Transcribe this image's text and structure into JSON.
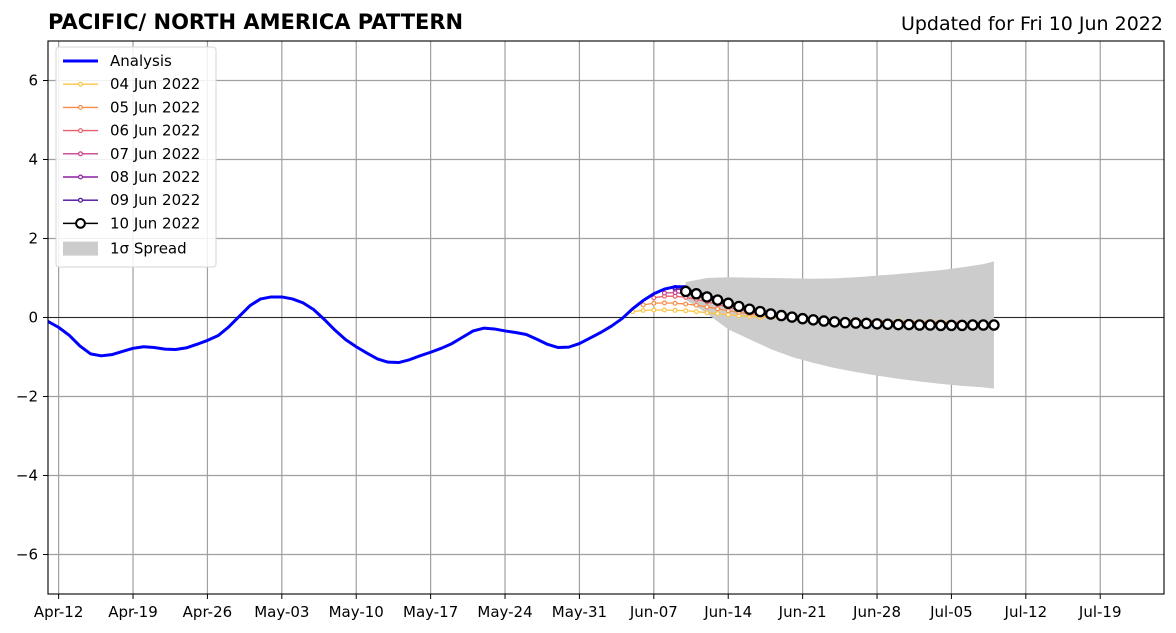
{
  "chart_data": {
    "type": "line",
    "title": "PACIFIC/ NORTH AMERICA PATTERN",
    "subtitle": "Updated for Fri 10 Jun 2022",
    "xlabel": "",
    "ylabel": "",
    "xlim": [
      "2022-04-11",
      "2022-07-25"
    ],
    "ylim": [
      -7,
      7
    ],
    "x_ticks": [
      "Apr-12",
      "Apr-19",
      "Apr-26",
      "May-03",
      "May-10",
      "May-17",
      "May-24",
      "May-31",
      "Jun-07",
      "Jun-14",
      "Jun-21",
      "Jun-28",
      "Jul-05",
      "Jul-12",
      "Jul-19"
    ],
    "x_tick_dates": [
      "2022-04-12",
      "2022-04-19",
      "2022-04-26",
      "2022-05-03",
      "2022-05-10",
      "2022-05-17",
      "2022-05-24",
      "2022-05-31",
      "2022-06-07",
      "2022-06-14",
      "2022-06-21",
      "2022-06-28",
      "2022-07-05",
      "2022-07-12",
      "2022-07-19"
    ],
    "y_ticks": [
      -6,
      -4,
      -2,
      0,
      2,
      4,
      6
    ],
    "y_tick_labels": [
      "−6",
      "−4",
      "−2",
      "0",
      "2",
      "4",
      "6"
    ],
    "grid": true,
    "legend_position": "top-left",
    "spread": {
      "name": "1σ Spread",
      "color": "#cccccc",
      "x": [
        "2022-06-10",
        "2022-06-12",
        "2022-06-14",
        "2022-06-16",
        "2022-06-18",
        "2022-06-20",
        "2022-06-22",
        "2022-06-24",
        "2022-06-26",
        "2022-06-28",
        "2022-06-30",
        "2022-07-02",
        "2022-07-04",
        "2022-07-06",
        "2022-07-08",
        "2022-07-09"
      ],
      "upper": [
        0.9,
        1.0,
        1.02,
        1.01,
        1.0,
        0.99,
        0.98,
        0.99,
        1.02,
        1.06,
        1.1,
        1.15,
        1.2,
        1.27,
        1.35,
        1.42
      ],
      "lower": [
        0.45,
        0.1,
        -0.3,
        -0.55,
        -0.8,
        -1.0,
        -1.15,
        -1.28,
        -1.38,
        -1.47,
        -1.55,
        -1.62,
        -1.68,
        -1.73,
        -1.77,
        -1.8
      ]
    },
    "series": [
      {
        "name": "Analysis",
        "color": "#0000ff",
        "x": [
          "2022-04-11",
          "2022-04-12",
          "2022-04-13",
          "2022-04-14",
          "2022-04-15",
          "2022-04-16",
          "2022-04-17",
          "2022-04-18",
          "2022-04-19",
          "2022-04-20",
          "2022-04-21",
          "2022-04-22",
          "2022-04-23",
          "2022-04-24",
          "2022-04-25",
          "2022-04-26",
          "2022-04-27",
          "2022-04-28",
          "2022-04-29",
          "2022-04-30",
          "2022-05-01",
          "2022-05-02",
          "2022-05-03",
          "2022-05-04",
          "2022-05-05",
          "2022-05-06",
          "2022-05-07",
          "2022-05-08",
          "2022-05-09",
          "2022-05-10",
          "2022-05-11",
          "2022-05-12",
          "2022-05-13",
          "2022-05-14",
          "2022-05-15",
          "2022-05-16",
          "2022-05-17",
          "2022-05-18",
          "2022-05-19",
          "2022-05-20",
          "2022-05-21",
          "2022-05-22",
          "2022-05-23",
          "2022-05-24",
          "2022-05-25",
          "2022-05-26",
          "2022-05-27",
          "2022-05-28",
          "2022-05-29",
          "2022-05-30",
          "2022-05-31",
          "2022-06-01",
          "2022-06-02",
          "2022-06-03",
          "2022-06-04",
          "2022-06-05",
          "2022-06-06",
          "2022-06-07",
          "2022-06-08",
          "2022-06-09",
          "2022-06-10"
        ],
        "values": [
          -0.1,
          -0.25,
          -0.45,
          -0.72,
          -0.92,
          -0.97,
          -0.94,
          -0.86,
          -0.78,
          -0.74,
          -0.76,
          -0.8,
          -0.81,
          -0.77,
          -0.68,
          -0.58,
          -0.46,
          -0.24,
          0.03,
          0.3,
          0.47,
          0.52,
          0.52,
          0.47,
          0.37,
          0.2,
          -0.05,
          -0.32,
          -0.56,
          -0.74,
          -0.9,
          -1.05,
          -1.13,
          -1.14,
          -1.07,
          -0.97,
          -0.88,
          -0.78,
          -0.66,
          -0.5,
          -0.34,
          -0.27,
          -0.29,
          -0.34,
          -0.38,
          -0.43,
          -0.55,
          -0.68,
          -0.76,
          -0.75,
          -0.66,
          -0.52,
          -0.38,
          -0.22,
          -0.03,
          0.22,
          0.43,
          0.6,
          0.72,
          0.78,
          0.78
        ]
      },
      {
        "name": "04 Jun 2022",
        "color": "#fbc445",
        "x": [
          "2022-06-05",
          "2022-06-06",
          "2022-06-07",
          "2022-06-08",
          "2022-06-09",
          "2022-06-10",
          "2022-06-11",
          "2022-06-12",
          "2022-06-13",
          "2022-06-14",
          "2022-06-15",
          "2022-06-16",
          "2022-06-17",
          "2022-06-18",
          "2022-06-19",
          "2022-06-20",
          "2022-06-21",
          "2022-06-22",
          "2022-06-23",
          "2022-06-24",
          "2022-06-25",
          "2022-06-26",
          "2022-06-27",
          "2022-06-28",
          "2022-06-29",
          "2022-06-30",
          "2022-07-01",
          "2022-07-02",
          "2022-07-03",
          "2022-07-04",
          "2022-07-05"
        ],
        "values": [
          0.15,
          0.18,
          0.19,
          0.19,
          0.18,
          0.17,
          0.15,
          0.12,
          0.1,
          0.07,
          0.05,
          0.03,
          0.01,
          0.0,
          -0.02,
          -0.03,
          -0.04,
          -0.05,
          -0.06,
          -0.06,
          -0.07,
          -0.07,
          -0.08,
          -0.08,
          -0.09,
          -0.09,
          -0.1,
          -0.1,
          -0.1,
          -0.11,
          -0.11
        ]
      },
      {
        "name": "05 Jun 2022",
        "color": "#f98c44",
        "x": [
          "2022-06-06",
          "2022-06-07",
          "2022-06-08",
          "2022-06-09",
          "2022-06-10",
          "2022-06-11",
          "2022-06-12",
          "2022-06-13",
          "2022-06-14",
          "2022-06-15",
          "2022-06-16",
          "2022-06-17",
          "2022-06-18",
          "2022-06-19",
          "2022-06-20",
          "2022-06-21",
          "2022-06-22",
          "2022-06-23",
          "2022-06-24",
          "2022-06-25",
          "2022-06-26",
          "2022-06-27",
          "2022-06-28",
          "2022-06-29",
          "2022-06-30",
          "2022-07-01",
          "2022-07-02",
          "2022-07-03",
          "2022-07-04",
          "2022-07-05",
          "2022-07-06"
        ],
        "values": [
          0.32,
          0.36,
          0.37,
          0.36,
          0.34,
          0.31,
          0.27,
          0.22,
          0.17,
          0.13,
          0.09,
          0.06,
          0.03,
          0.01,
          -0.01,
          -0.02,
          -0.04,
          -0.05,
          -0.06,
          -0.07,
          -0.07,
          -0.08,
          -0.09,
          -0.09,
          -0.1,
          -0.1,
          -0.11,
          -0.11,
          -0.12,
          -0.12,
          -0.12
        ]
      },
      {
        "name": "06 Jun 2022",
        "color": "#e85f6a",
        "x": [
          "2022-06-07",
          "2022-06-08",
          "2022-06-09",
          "2022-06-10",
          "2022-06-11",
          "2022-06-12",
          "2022-06-13",
          "2022-06-14",
          "2022-06-15",
          "2022-06-16",
          "2022-06-17",
          "2022-06-18",
          "2022-06-19",
          "2022-06-20",
          "2022-06-21",
          "2022-06-22",
          "2022-06-23",
          "2022-06-24",
          "2022-06-25",
          "2022-06-26",
          "2022-06-27",
          "2022-06-28",
          "2022-06-29",
          "2022-06-30",
          "2022-07-01",
          "2022-07-02",
          "2022-07-03",
          "2022-07-04",
          "2022-07-05",
          "2022-07-06",
          "2022-07-07"
        ],
        "values": [
          0.5,
          0.54,
          0.54,
          0.51,
          0.46,
          0.4,
          0.33,
          0.26,
          0.2,
          0.14,
          0.09,
          0.05,
          0.02,
          -0.01,
          -0.03,
          -0.05,
          -0.07,
          -0.08,
          -0.09,
          -0.1,
          -0.11,
          -0.11,
          -0.12,
          -0.12,
          -0.13,
          -0.13,
          -0.14,
          -0.14,
          -0.14,
          -0.15,
          -0.15
        ]
      },
      {
        "name": "07 Jun 2022",
        "color": "#c9408b",
        "x": [
          "2022-06-08",
          "2022-06-09",
          "2022-06-10",
          "2022-06-11",
          "2022-06-12",
          "2022-06-13",
          "2022-06-14",
          "2022-06-15",
          "2022-06-16",
          "2022-06-17",
          "2022-06-18",
          "2022-06-19",
          "2022-06-20",
          "2022-06-21",
          "2022-06-22",
          "2022-06-23",
          "2022-06-24",
          "2022-06-25",
          "2022-06-26",
          "2022-06-27",
          "2022-06-28",
          "2022-06-29",
          "2022-06-30",
          "2022-07-01",
          "2022-07-02",
          "2022-07-03",
          "2022-07-04",
          "2022-07-05",
          "2022-07-06",
          "2022-07-07"
        ],
        "values": [
          0.62,
          0.63,
          0.6,
          0.54,
          0.47,
          0.39,
          0.31,
          0.23,
          0.16,
          0.1,
          0.05,
          0.01,
          -0.02,
          -0.05,
          -0.07,
          -0.09,
          -0.1,
          -0.11,
          -0.12,
          -0.13,
          -0.14,
          -0.14,
          -0.15,
          -0.15,
          -0.16,
          -0.16,
          -0.17,
          -0.17,
          -0.17,
          -0.18
        ]
      },
      {
        "name": "08 Jun 2022",
        "color": "#8c1fa3",
        "x": [
          "2022-06-09",
          "2022-06-10",
          "2022-06-11",
          "2022-06-12",
          "2022-06-13",
          "2022-06-14",
          "2022-06-15",
          "2022-06-16",
          "2022-06-17",
          "2022-06-18",
          "2022-06-19",
          "2022-06-20",
          "2022-06-21",
          "2022-06-22",
          "2022-06-23",
          "2022-06-24",
          "2022-06-25",
          "2022-06-26",
          "2022-06-27",
          "2022-06-28",
          "2022-06-29",
          "2022-06-30",
          "2022-07-01",
          "2022-07-02",
          "2022-07-03",
          "2022-07-04",
          "2022-07-05",
          "2022-07-06",
          "2022-07-07"
        ],
        "values": [
          0.72,
          0.7,
          0.64,
          0.56,
          0.47,
          0.38,
          0.29,
          0.21,
          0.14,
          0.08,
          0.03,
          -0.01,
          -0.04,
          -0.07,
          -0.09,
          -0.11,
          -0.12,
          -0.13,
          -0.14,
          -0.15,
          -0.16,
          -0.16,
          -0.17,
          -0.17,
          -0.18,
          -0.18,
          -0.18,
          -0.19,
          -0.19
        ]
      },
      {
        "name": "09 Jun 2022",
        "color": "#4b0c9b",
        "x": [
          "2022-06-09",
          "2022-06-10",
          "2022-06-11",
          "2022-06-12",
          "2022-06-13",
          "2022-06-14",
          "2022-06-15",
          "2022-06-16",
          "2022-06-17",
          "2022-06-18",
          "2022-06-19",
          "2022-06-20",
          "2022-06-21",
          "2022-06-22",
          "2022-06-23",
          "2022-06-24",
          "2022-06-25",
          "2022-06-26",
          "2022-06-27",
          "2022-06-28",
          "2022-06-29",
          "2022-06-30",
          "2022-07-01",
          "2022-07-02",
          "2022-07-03",
          "2022-07-04",
          "2022-07-05",
          "2022-07-06",
          "2022-07-07",
          "2022-07-08"
        ],
        "values": [
          0.76,
          0.73,
          0.66,
          0.58,
          0.49,
          0.4,
          0.31,
          0.23,
          0.15,
          0.09,
          0.04,
          0.0,
          -0.04,
          -0.07,
          -0.09,
          -0.11,
          -0.13,
          -0.14,
          -0.15,
          -0.16,
          -0.17,
          -0.17,
          -0.18,
          -0.18,
          -0.19,
          -0.19,
          -0.19,
          -0.2,
          -0.2,
          -0.2
        ]
      },
      {
        "name": "10 Jun 2022",
        "color": "#000000",
        "x": [
          "2022-06-10",
          "2022-06-11",
          "2022-06-12",
          "2022-06-13",
          "2022-06-14",
          "2022-06-15",
          "2022-06-16",
          "2022-06-17",
          "2022-06-18",
          "2022-06-19",
          "2022-06-20",
          "2022-06-21",
          "2022-06-22",
          "2022-06-23",
          "2022-06-24",
          "2022-06-25",
          "2022-06-26",
          "2022-06-27",
          "2022-06-28",
          "2022-06-29",
          "2022-06-30",
          "2022-07-01",
          "2022-07-02",
          "2022-07-03",
          "2022-07-04",
          "2022-07-05",
          "2022-07-06",
          "2022-07-07",
          "2022-07-08",
          "2022-07-09"
        ],
        "values": [
          0.66,
          0.6,
          0.52,
          0.44,
          0.36,
          0.28,
          0.21,
          0.15,
          0.09,
          0.05,
          0.01,
          -0.03,
          -0.06,
          -0.09,
          -0.11,
          -0.13,
          -0.14,
          -0.15,
          -0.16,
          -0.17,
          -0.18,
          -0.18,
          -0.19,
          -0.19,
          -0.2,
          -0.2,
          -0.2,
          -0.19,
          -0.19,
          -0.19
        ]
      }
    ]
  }
}
